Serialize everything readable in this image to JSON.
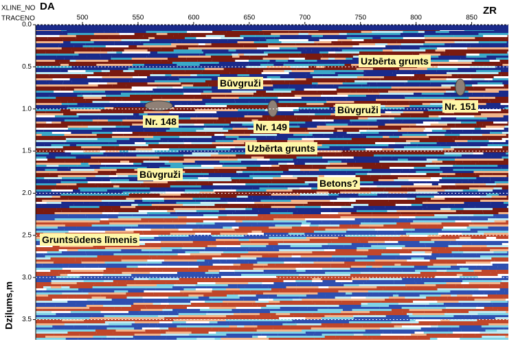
{
  "chart_data": {
    "type": "radargram",
    "x_axis_labels": [
      "XLINE_NO",
      "TRACENO"
    ],
    "left_label": "DA",
    "right_label": "ZR",
    "y_label": "Dziļums,m",
    "xlim": [
      458,
      883
    ],
    "xticks": [
      500,
      550,
      600,
      650,
      700,
      750,
      800,
      850
    ],
    "ylim": [
      0,
      3.74
    ],
    "yticks": [
      {
        "value": 0,
        "label": "0.0"
      },
      0.5,
      {
        "value": 1,
        "label": "1.0"
      },
      1.5,
      {
        "value": 2,
        "label": "2.0"
      },
      2.5,
      {
        "value": 3,
        "label": "3.0"
      },
      3.5
    ],
    "grid": true,
    "annotations": [
      "Uzbērta grunts",
      "Būvgruži",
      "Būvgruži",
      "Nr. 148",
      "Nr. 149",
      "Nr. 151",
      "Uzbērta grunts",
      "Būvgruži",
      "Betons?",
      "Gruntsūdens līmenis"
    ]
  }
}
